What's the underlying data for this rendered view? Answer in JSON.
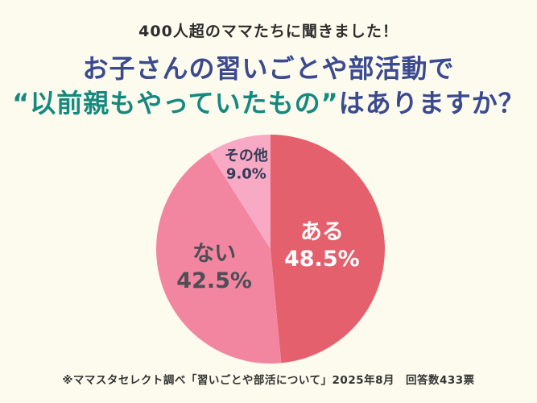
{
  "header": {
    "eyebrow": "400人超のママたちに聞きました！",
    "title_line1": "お子さんの習いごとや部活動で",
    "title_line2_highlight": "“以前親もやっていたもの”",
    "title_line2_rest": "はありますか？",
    "title_color": "#3B4A90",
    "highlight_color": "#16897F"
  },
  "footer": {
    "note": "※ママスタセレクト調べ「習いごとや部活について」2025年8月　回答数433票"
  },
  "colors": {
    "background": "#FCFBEE",
    "eyebrow_text": "#2D2D2D",
    "footer_text": "#333333"
  },
  "chart_data": {
    "type": "pie",
    "title": "お子さんの習いごとや部活動で“以前親もやっていたもの”はありますか？",
    "unit": "%",
    "start_angle_deg": 0,
    "direction": "clockwise",
    "center": [
      336,
      309
    ],
    "radius": 142,
    "slices": [
      {
        "label": "ある",
        "value": 48.5,
        "percent_label": "48.5%",
        "color": "#E4606C",
        "text_color": "#FFFFFF",
        "label_radius": 0.45,
        "font_size": 27
      },
      {
        "label": "ない",
        "value": 42.5,
        "percent_label": "42.5%",
        "color": "#F286A0",
        "text_color": "#4E4E56",
        "label_radius": 0.52,
        "font_size": 27
      },
      {
        "label": "その他",
        "value": 9.0,
        "percent_label": "9.0%",
        "color": "#F8A9C4",
        "text_color": "#343B58",
        "label_radius": 0.76,
        "font_size": 18
      }
    ]
  }
}
